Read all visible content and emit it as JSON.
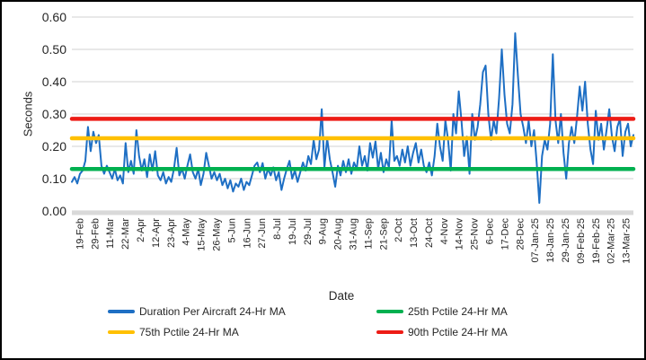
{
  "window": {
    "background": "#ffffff",
    "border_color": "#000000"
  },
  "chart_data": {
    "type": "line",
    "title": "",
    "xlabel": "Date",
    "ylabel": "Seconds",
    "ylim": [
      0,
      0.6
    ],
    "y_ticks": [
      "0.00",
      "0.10",
      "0.20",
      "0.30",
      "0.40",
      "0.50",
      "0.60"
    ],
    "grid": "horizontal",
    "grid_color": "#d9d9d9",
    "legend_position": "bottom",
    "categories": [
      "19-Feb",
      "29-Feb",
      "11-Mar",
      "22-Mar",
      "2-Apr",
      "12-Apr",
      "23-Apr",
      "4-May",
      "15-May",
      "26-May",
      "5-Jun",
      "16-Jun",
      "27-Jun",
      "8-Jul",
      "19-Jul",
      "29-Jul",
      "9-Aug",
      "20-Aug",
      "31-Aug",
      "11-Sep",
      "21-Sep",
      "2-Oct",
      "13-Oct",
      "24-Oct",
      "4-Nov",
      "14-Nov",
      "25-Nov",
      "6-Dec",
      "17-Dec",
      "28-Dec",
      "07-Jan-25",
      "18-Jan-25",
      "29-Jan-25",
      "09-Feb-25",
      "19-Feb-25",
      "02-Mar-25",
      "13-Mar-25"
    ],
    "series": [
      {
        "id": "duration",
        "name": "Duration Per Aircraft 24-Hr MA",
        "color": "#1e6fc4",
        "values": [
          0.09,
          0.105,
          0.085,
          0.115,
          0.125,
          0.155,
          0.26,
          0.185,
          0.245,
          0.21,
          0.235,
          0.14,
          0.115,
          0.14,
          0.12,
          0.1,
          0.13,
          0.095,
          0.11,
          0.085,
          0.21,
          0.12,
          0.155,
          0.115,
          0.25,
          0.17,
          0.125,
          0.16,
          0.105,
          0.175,
          0.125,
          0.185,
          0.11,
          0.095,
          0.12,
          0.085,
          0.105,
          0.09,
          0.13,
          0.195,
          0.11,
          0.13,
          0.1,
          0.14,
          0.175,
          0.12,
          0.1,
          0.13,
          0.08,
          0.115,
          0.18,
          0.14,
          0.1,
          0.12,
          0.095,
          0.115,
          0.08,
          0.1,
          0.07,
          0.095,
          0.06,
          0.085,
          0.075,
          0.1,
          0.065,
          0.09,
          0.08,
          0.11,
          0.14,
          0.15,
          0.12,
          0.148,
          0.1,
          0.13,
          0.11,
          0.135,
          0.095,
          0.12,
          0.065,
          0.1,
          0.13,
          0.155,
          0.1,
          0.125,
          0.09,
          0.12,
          0.15,
          0.125,
          0.17,
          0.145,
          0.22,
          0.16,
          0.19,
          0.315,
          0.135,
          0.225,
          0.16,
          0.12,
          0.075,
          0.14,
          0.11,
          0.155,
          0.12,
          0.16,
          0.115,
          0.15,
          0.13,
          0.2,
          0.14,
          0.17,
          0.125,
          0.21,
          0.165,
          0.215,
          0.13,
          0.18,
          0.12,
          0.16,
          0.135,
          0.28,
          0.155,
          0.17,
          0.14,
          0.19,
          0.15,
          0.2,
          0.14,
          0.18,
          0.21,
          0.15,
          0.19,
          0.14,
          0.12,
          0.15,
          0.11,
          0.17,
          0.27,
          0.2,
          0.155,
          0.28,
          0.22,
          0.125,
          0.3,
          0.24,
          0.37,
          0.28,
          0.17,
          0.23,
          0.115,
          0.3,
          0.22,
          0.26,
          0.33,
          0.43,
          0.45,
          0.3,
          0.22,
          0.28,
          0.24,
          0.35,
          0.5,
          0.36,
          0.27,
          0.24,
          0.33,
          0.55,
          0.42,
          0.3,
          0.26,
          0.21,
          0.28,
          0.2,
          0.25,
          0.15,
          0.025,
          0.17,
          0.22,
          0.19,
          0.27,
          0.485,
          0.28,
          0.21,
          0.3,
          0.18,
          0.1,
          0.21,
          0.26,
          0.21,
          0.29,
          0.385,
          0.31,
          0.4,
          0.27,
          0.19,
          0.145,
          0.31,
          0.22,
          0.27,
          0.19,
          0.25,
          0.315,
          0.23,
          0.185,
          0.26,
          0.285,
          0.17,
          0.245,
          0.27,
          0.2,
          0.235
        ]
      },
      {
        "id": "p25",
        "name": "25th Pctile 24-Hr MA",
        "color": "#00b050",
        "value": 0.13
      },
      {
        "id": "p75",
        "name": "75th Pctile 24-Hr MA",
        "color": "#ffc000",
        "value": 0.225
      },
      {
        "id": "p90",
        "name": "90th Pctile 24-Hr MA",
        "color": "#ed1c16",
        "value": 0.285
      }
    ]
  },
  "legend": {
    "items": [
      {
        "label": "Duration Per Aircraft 24-Hr MA",
        "color": "#1e6fc4"
      },
      {
        "label": "25th Pctile 24-Hr MA",
        "color": "#00b050"
      },
      {
        "label": "75th Pctile 24-Hr MA",
        "color": "#ffc000"
      },
      {
        "label": "90th Pctile 24-Hr MA",
        "color": "#ed1c16"
      }
    ]
  }
}
